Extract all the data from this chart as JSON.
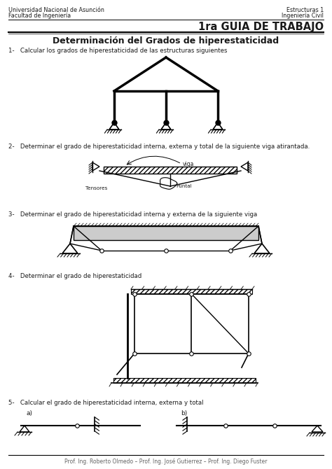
{
  "title_left1": "Universidad Nacional de Asunción",
  "title_left2": "Facultad de Ingeniería",
  "title_right1": "Estructuras 1",
  "title_right2": "Ingeniería Civil",
  "main_title": "1ra GUIA DE TRABAJO",
  "subtitle": "Determinación del Grados de hiperestaticidad",
  "q1": "1-   Calcular los grados de hiperestaticidad de las estructuras siguientes",
  "q2": "2-   Determinar el grado de hiperestaticidad interna, externa y total de la siguiente viga atirantada.",
  "q3": "3-   Determinar el grado de hiperestaticidad interna y externa de la siguiente viga",
  "q4": "4-   Determinar el grado de hiperestaticidad",
  "q5": "5-   Calcular el grado de hiperestaticidad interna, externa y total",
  "footer": "Prof. Ing. Roberto Olmedo – Prof. Ing. José Gutierrez – Prof. Ing. Diego Fuster",
  "label_a": "a)",
  "label_b": "b)",
  "label_viga": "viga",
  "label_tensores": "Tensores",
  "label_puntal": "Puntal",
  "bg_color": "#ffffff",
  "line_color": "#000000",
  "text_color": "#1a1a1a",
  "gray_color": "#666666"
}
